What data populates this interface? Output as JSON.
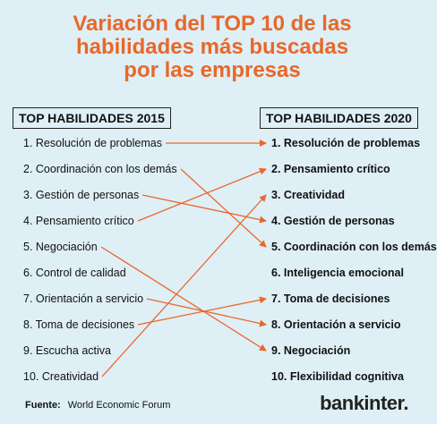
{
  "title_lines": [
    "Variación del TOP 10 de las",
    "habilidades más buscadas",
    "por las empresas"
  ],
  "left_header": "TOP HABILIDADES 2015",
  "right_header": "TOP HABILIDADES 2020",
  "left_items": [
    "1. Resolución de problemas",
    "2. Coordinación con los demás",
    "3. Gestión de personas",
    "4. Pensamiento crítico",
    "5. Negociación",
    "6. Control de calidad",
    "7. Orientación a servicio",
    "8. Toma de decisiones",
    "9. Escucha activa",
    "10. Creatividad"
  ],
  "right_items": [
    "1. Resolución de problemas",
    "2. Pensamiento crítico",
    "3. Creatividad",
    "4. Gestión de personas",
    "5. Coordinación con los demás",
    "6. Inteligencia emocional",
    "7. Toma de decisiones",
    "8. Orientación a servicio",
    "9. Negociación",
    "10. Flexibilidad cognitiva"
  ],
  "links": [
    {
      "from": 1,
      "to": 1
    },
    {
      "from": 2,
      "to": 5
    },
    {
      "from": 3,
      "to": 4
    },
    {
      "from": 4,
      "to": 2
    },
    {
      "from": 5,
      "to": 9
    },
    {
      "from": 7,
      "to": 8
    },
    {
      "from": 8,
      "to": 7
    },
    {
      "from": 10,
      "to": 3
    }
  ],
  "line_color": "#e8682a",
  "source_label": "Fuente:",
  "source_text": "World Economic Forum",
  "brand": "bankinter."
}
